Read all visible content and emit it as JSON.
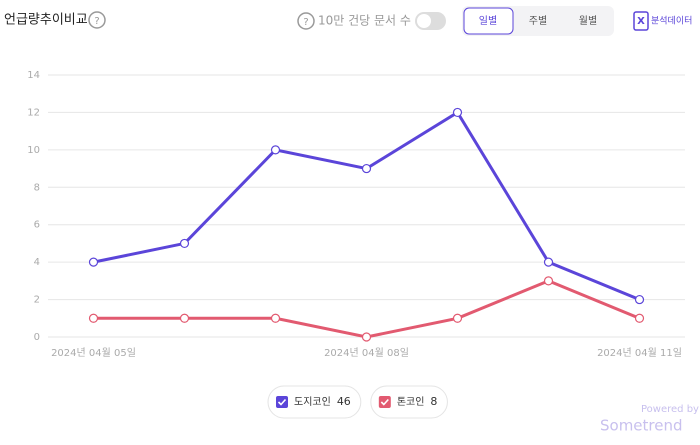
{
  "chart_data": {
    "type": "line",
    "title": "언급량추이비교",
    "categories": [
      "2024년 04월 05일",
      null,
      null,
      "2024년 04월 08일",
      null,
      null,
      "2024년 04월 11일"
    ],
    "series": [
      {
        "name": "도지코인",
        "color": "#5b45d9",
        "values": [
          4,
          5,
          10,
          9,
          12,
          4,
          2
        ],
        "total": 46
      },
      {
        "name": "톤코인",
        "color": "#e25a70",
        "values": [
          1,
          1,
          1,
          0,
          1,
          3,
          1
        ],
        "total": 8
      }
    ],
    "ylim": [
      0,
      14
    ],
    "yticks": [
      0,
      2,
      4,
      6,
      8,
      10,
      12,
      14
    ],
    "grid": true
  },
  "ui": {
    "help": "?",
    "per_doc_toggle": "10만 건당 문서 수",
    "tabs": [
      "일별",
      "주별",
      "월별"
    ],
    "export": "분석데이터",
    "export_icon": "X",
    "powered_by": "Powered by",
    "brand": "Sometrend"
  }
}
